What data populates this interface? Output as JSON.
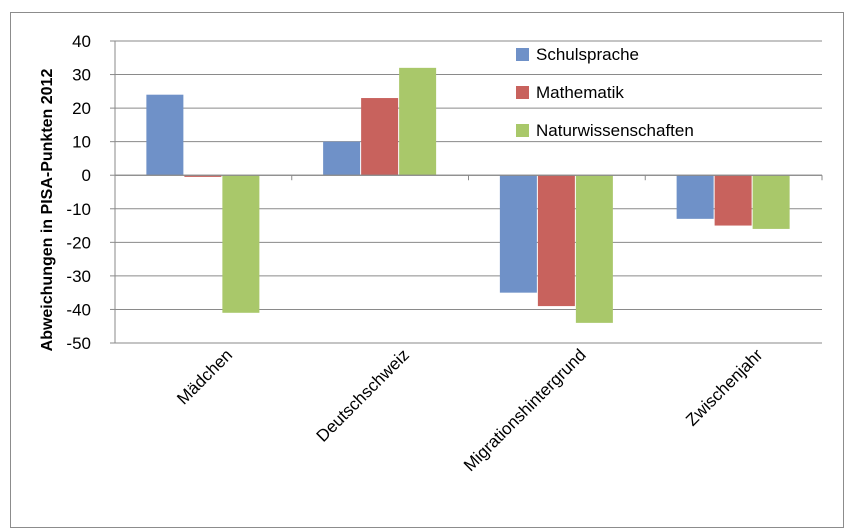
{
  "chart_data": {
    "type": "bar",
    "categories": [
      "Mädchen",
      "Deutschschweiz",
      "Migrationshintergrund",
      "Zwischenjahr"
    ],
    "series": [
      {
        "name": "Schulsprache",
        "color": "#6f91c8",
        "values": [
          24,
          10,
          -35,
          -13
        ]
      },
      {
        "name": "Mathematik",
        "color": "#c8625d",
        "values": [
          -0.5,
          23,
          -39,
          -15
        ]
      },
      {
        "name": "Naturwissenschaften",
        "color": "#a9c86a",
        "values": [
          -41,
          32,
          -44,
          -16
        ]
      }
    ],
    "ylabel": "Abweichungen in PISA-Punkten 2012",
    "xlabel": "",
    "ylim": [
      -50,
      40
    ],
    "yticks": [
      "40",
      "30",
      "20",
      "10",
      "0",
      "-10",
      "-20",
      "-30",
      "-40",
      "-50"
    ],
    "grid": true,
    "legend_position": "top-right"
  }
}
